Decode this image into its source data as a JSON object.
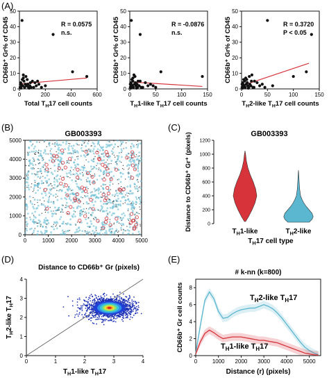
{
  "panel_labels": {
    "A": "(A)",
    "B": "(B)",
    "C": "(C)",
    "D": "(D)",
    "E": "(E)"
  },
  "colors": {
    "red": "#d6333b",
    "blue": "#5bb6cf",
    "black": "#111111",
    "gray": "#777777"
  },
  "chart_data": [
    {
      "panel": "A1",
      "type": "scatter",
      "ylabel": "CD66b⁺ Gr% of CD45",
      "xlabel_parts": [
        "Total ",
        "T",
        "H",
        "17 cell counts"
      ],
      "xlim": [
        0,
        600
      ],
      "ylim": [
        0,
        50
      ],
      "xticks": [
        0,
        200,
        400,
        600
      ],
      "yticks": [
        0,
        10,
        20,
        30,
        40,
        50
      ],
      "stats": [
        "R = 0.0575",
        "n.s."
      ],
      "trend": {
        "x": [
          0,
          520
        ],
        "y": [
          3.2,
          7.0
        ]
      },
      "points": [
        [
          20,
          44
        ],
        [
          260,
          35
        ],
        [
          410,
          11
        ],
        [
          520,
          8
        ],
        [
          30,
          9
        ],
        [
          50,
          8
        ],
        [
          60,
          6
        ],
        [
          100,
          5
        ],
        [
          120,
          4
        ],
        [
          150,
          3
        ],
        [
          10,
          4
        ],
        [
          15,
          3
        ],
        [
          25,
          2
        ],
        [
          35,
          5
        ],
        [
          45,
          3
        ],
        [
          55,
          2
        ],
        [
          70,
          1
        ],
        [
          80,
          2
        ],
        [
          90,
          1
        ],
        [
          5,
          1
        ],
        [
          12,
          0.5
        ],
        [
          40,
          1
        ],
        [
          65,
          3
        ],
        [
          110,
          1
        ],
        [
          130,
          2
        ],
        [
          170,
          1
        ],
        [
          200,
          2
        ],
        [
          30,
          7
        ],
        [
          85,
          4
        ],
        [
          140,
          5
        ],
        [
          22,
          6
        ],
        [
          18,
          2
        ],
        [
          8,
          3
        ],
        [
          75,
          0.5
        ]
      ]
    },
    {
      "panel": "A2",
      "type": "scatter",
      "ylabel": "CD66b⁺ Gr% of CD45",
      "xlabel_parts": [
        "T",
        "H",
        "1-like T",
        "H",
        "17 cell counts"
      ],
      "xlim": [
        0,
        150
      ],
      "ylim": [
        0,
        50
      ],
      "xticks": [
        0,
        50,
        100,
        150
      ],
      "yticks": [
        0,
        10,
        20,
        30,
        40,
        50
      ],
      "stats": [
        "R = -0.0876",
        "n.s."
      ],
      "trend": {
        "x": [
          0,
          140
        ],
        "y": [
          4.5,
          1.6
        ]
      },
      "points": [
        [
          3,
          44
        ],
        [
          20,
          35
        ],
        [
          60,
          11
        ],
        [
          140,
          8
        ],
        [
          8,
          9
        ],
        [
          10,
          8
        ],
        [
          4,
          6
        ],
        [
          20,
          5
        ],
        [
          30,
          4
        ],
        [
          40,
          3
        ],
        [
          2,
          4
        ],
        [
          3,
          3
        ],
        [
          5,
          2
        ],
        [
          6,
          5
        ],
        [
          9,
          3
        ],
        [
          12,
          2
        ],
        [
          15,
          1
        ],
        [
          18,
          2
        ],
        [
          25,
          1
        ],
        [
          1,
          1
        ],
        [
          2,
          0.5
        ],
        [
          7,
          1
        ],
        [
          14,
          3
        ],
        [
          22,
          1
        ],
        [
          35,
          2
        ],
        [
          50,
          1
        ],
        [
          45,
          2
        ],
        [
          6,
          7
        ],
        [
          11,
          4
        ],
        [
          16,
          5
        ],
        [
          4,
          6
        ],
        [
          3,
          2
        ],
        [
          1,
          3
        ],
        [
          13,
          0.5
        ]
      ]
    },
    {
      "panel": "A3",
      "type": "scatter",
      "ylabel": "CD66b⁺ Gr% of CD45",
      "xlabel_parts": [
        "T",
        "H",
        "2-like T",
        "H",
        "17 cell counts"
      ],
      "xlim": [
        0,
        150
      ],
      "ylim": [
        0,
        50
      ],
      "xticks": [
        0,
        50,
        100,
        150
      ],
      "yticks": [
        0,
        10,
        20,
        30,
        40,
        50
      ],
      "stats": [
        "R = 0.3720",
        "P < 0.05"
      ],
      "trend": {
        "x": [
          0,
          130
        ],
        "y": [
          2.0,
          16.5
        ]
      },
      "points": [
        [
          50,
          44
        ],
        [
          135,
          35
        ],
        [
          125,
          11
        ],
        [
          100,
          8
        ],
        [
          20,
          9
        ],
        [
          15,
          8
        ],
        [
          10,
          6
        ],
        [
          25,
          5
        ],
        [
          30,
          4
        ],
        [
          40,
          3
        ],
        [
          2,
          4
        ],
        [
          3,
          3
        ],
        [
          5,
          2
        ],
        [
          6,
          5
        ],
        [
          9,
          3
        ],
        [
          12,
          2
        ],
        [
          14,
          1
        ],
        [
          18,
          2
        ],
        [
          22,
          1
        ],
        [
          1,
          1
        ],
        [
          2,
          0.5
        ],
        [
          7,
          1
        ],
        [
          16,
          3
        ],
        [
          24,
          1
        ],
        [
          35,
          2
        ],
        [
          45,
          1
        ],
        [
          60,
          2
        ],
        [
          8,
          7
        ],
        [
          11,
          4
        ],
        [
          19,
          5
        ],
        [
          4,
          6
        ],
        [
          3,
          2
        ],
        [
          1,
          3
        ],
        [
          13,
          0.5
        ]
      ]
    },
    {
      "panel": "B",
      "type": "scatter",
      "title": "GB003393",
      "xlim": [
        0,
        5000
      ],
      "ylim": [
        0,
        5000
      ],
      "xticks": [
        0,
        1000,
        2000,
        3000,
        4000,
        5000
      ],
      "yticks": [
        0,
        1000,
        2000,
        3000,
        4000,
        5000
      ],
      "series": [
        {
          "name": "",
          "marker": "dot",
          "color": "#5bb6cf",
          "count": 900
        },
        {
          "name": "",
          "marker": "dot",
          "color": "#333333",
          "count": 350
        },
        {
          "name": "",
          "marker": "circle",
          "color": "#d6333b",
          "count": 75
        }
      ]
    },
    {
      "panel": "C",
      "type": "violin",
      "title": "GB003393",
      "ylabel": "Distance to CD66b⁺ Gr⁺ (pixels)",
      "xlabel_parts": [
        "T",
        "H",
        "17 cell type"
      ],
      "categories": [
        [
          "T",
          "H",
          "1-like"
        ],
        [
          "T",
          "H",
          "2-like"
        ]
      ],
      "ylim": [
        0,
        1200
      ],
      "yticks": [
        0,
        200,
        400,
        600,
        800,
        1000,
        1200
      ],
      "violins": [
        {
          "color": "#d6333b",
          "ys": [
            30,
            100,
            200,
            300,
            400,
            500,
            600,
            700,
            800,
            900,
            1000,
            1050
          ],
          "ws": [
            0.05,
            0.3,
            0.6,
            0.85,
            1.0,
            0.9,
            0.7,
            0.45,
            0.25,
            0.12,
            0.05,
            0.0
          ]
        },
        {
          "color": "#5bb6cf",
          "ys": [
            20,
            60,
            100,
            150,
            200,
            250,
            300,
            350,
            400,
            500,
            600,
            700,
            770
          ],
          "ws": [
            0.9,
            1.15,
            1.25,
            1.15,
            0.9,
            0.65,
            0.45,
            0.3,
            0.18,
            0.1,
            0.06,
            0.03,
            0.0
          ]
        }
      ]
    },
    {
      "panel": "D",
      "type": "density-scatter",
      "title": "Distance to CD66b⁺ Gr (pixels)",
      "xlabel_parts": [
        "T",
        "H",
        "1-like T",
        "H",
        "17"
      ],
      "ylabel_parts": [
        "T",
        "H",
        "2-like T",
        "H",
        "17"
      ],
      "xlim": [
        0,
        4
      ],
      "ylim": [
        0,
        4
      ],
      "xticks": [
        0,
        1,
        2,
        3,
        4
      ],
      "yticks": [
        0,
        1,
        2,
        3,
        4
      ],
      "identity_line": true,
      "center": [
        2.85,
        2.5
      ]
    },
    {
      "panel": "E",
      "type": "line",
      "title": "# k-nn (k=800)",
      "xlabel": "Distance (r) (pixels)",
      "ylabel": "CD66b⁺ Gr cell counts",
      "xlim": [
        0,
        5500
      ],
      "ylim": [
        0,
        9
      ],
      "xticks": [
        0,
        1000,
        2000,
        3000,
        4000,
        5000
      ],
      "yticks": [
        0,
        2,
        4,
        6,
        8
      ],
      "series": [
        {
          "name_parts": [
            "T",
            "H",
            "2-like T",
            "H",
            "17"
          ],
          "color": "#5bb6cf",
          "x": [
            0,
            200,
            400,
            600,
            800,
            1000,
            1200,
            1400,
            1600,
            1800,
            2000,
            2200,
            2400,
            2600,
            2800,
            3000,
            3200,
            3400,
            3600,
            3800,
            4000,
            4200,
            4400,
            4600,
            4800,
            5000,
            5200,
            5400
          ],
          "y": [
            0.3,
            3.5,
            6.5,
            7.5,
            6.7,
            5.2,
            4.4,
            4.5,
            4.9,
            5.2,
            5.4,
            5.5,
            5.6,
            5.6,
            5.8,
            6.0,
            5.8,
            5.5,
            5.0,
            4.4,
            3.7,
            3.0,
            2.3,
            1.6,
            1.0,
            0.6,
            0.3,
            0.1
          ]
        },
        {
          "name_parts": [
            "T",
            "H",
            "1-like T",
            "H",
            "17"
          ],
          "color": "#d6333b",
          "x": [
            0,
            200,
            400,
            600,
            800,
            1000,
            1200,
            1400,
            1600,
            1800,
            2000,
            2200,
            2400,
            2600,
            2800,
            3000,
            3200,
            3400,
            3600,
            3800,
            4000,
            4200,
            4400,
            4600,
            4800,
            5000,
            5200,
            5400
          ],
          "y": [
            0.2,
            1.6,
            2.6,
            3.0,
            2.7,
            2.3,
            2.0,
            2.1,
            2.2,
            2.2,
            2.2,
            2.1,
            2.0,
            1.9,
            1.8,
            1.8,
            1.7,
            1.6,
            1.5,
            1.3,
            1.1,
            0.9,
            0.7,
            0.5,
            0.3,
            0.2,
            0.1,
            0.05
          ]
        }
      ]
    }
  ]
}
